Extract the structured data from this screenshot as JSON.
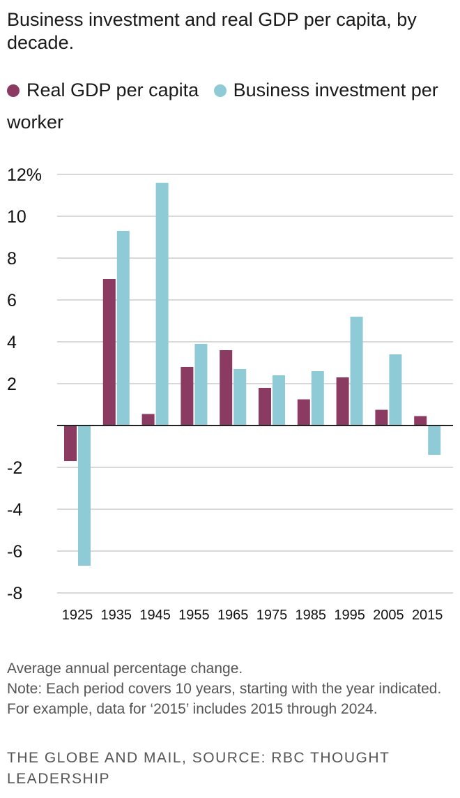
{
  "title": "Business investment and real GDP per capita, by decade.",
  "colors": {
    "gdp": "#8b3a62",
    "investment": "#8fcbd6",
    "grid": "#cccccc",
    "zero": "#222222"
  },
  "notes": {
    "line1": "Average annual percentage change.",
    "line2": "Note: Each period covers 10 years, starting with the year indicated. For example, data for ‘2015’ includes 2015 through 2024."
  },
  "credit": "THE GLOBE AND MAIL, SOURCE: RBC THOUGHT LEADERSHIP",
  "chart_data": {
    "type": "bar",
    "categories": [
      "1925",
      "1935",
      "1945",
      "1955",
      "1965",
      "1975",
      "1985",
      "1995",
      "2005",
      "2015"
    ],
    "series": [
      {
        "name": "Real GDP per capita",
        "values": [
          -1.7,
          7.0,
          0.55,
          2.8,
          3.6,
          1.8,
          1.25,
          2.3,
          0.75,
          0.45
        ]
      },
      {
        "name": "Business investment per worker",
        "values": [
          -6.7,
          9.3,
          11.6,
          3.9,
          2.7,
          2.4,
          2.6,
          5.2,
          3.4,
          -1.4
        ]
      }
    ],
    "ylim": [
      -8,
      12
    ],
    "yticks": [
      12,
      10,
      8,
      6,
      4,
      2,
      -2,
      -4,
      -6,
      -8
    ],
    "ytick_labels": [
      "12%",
      "10",
      "8",
      "6",
      "4",
      "2",
      "-2",
      "-4",
      "-6",
      "-8"
    ],
    "grid": true,
    "legend": "top"
  }
}
